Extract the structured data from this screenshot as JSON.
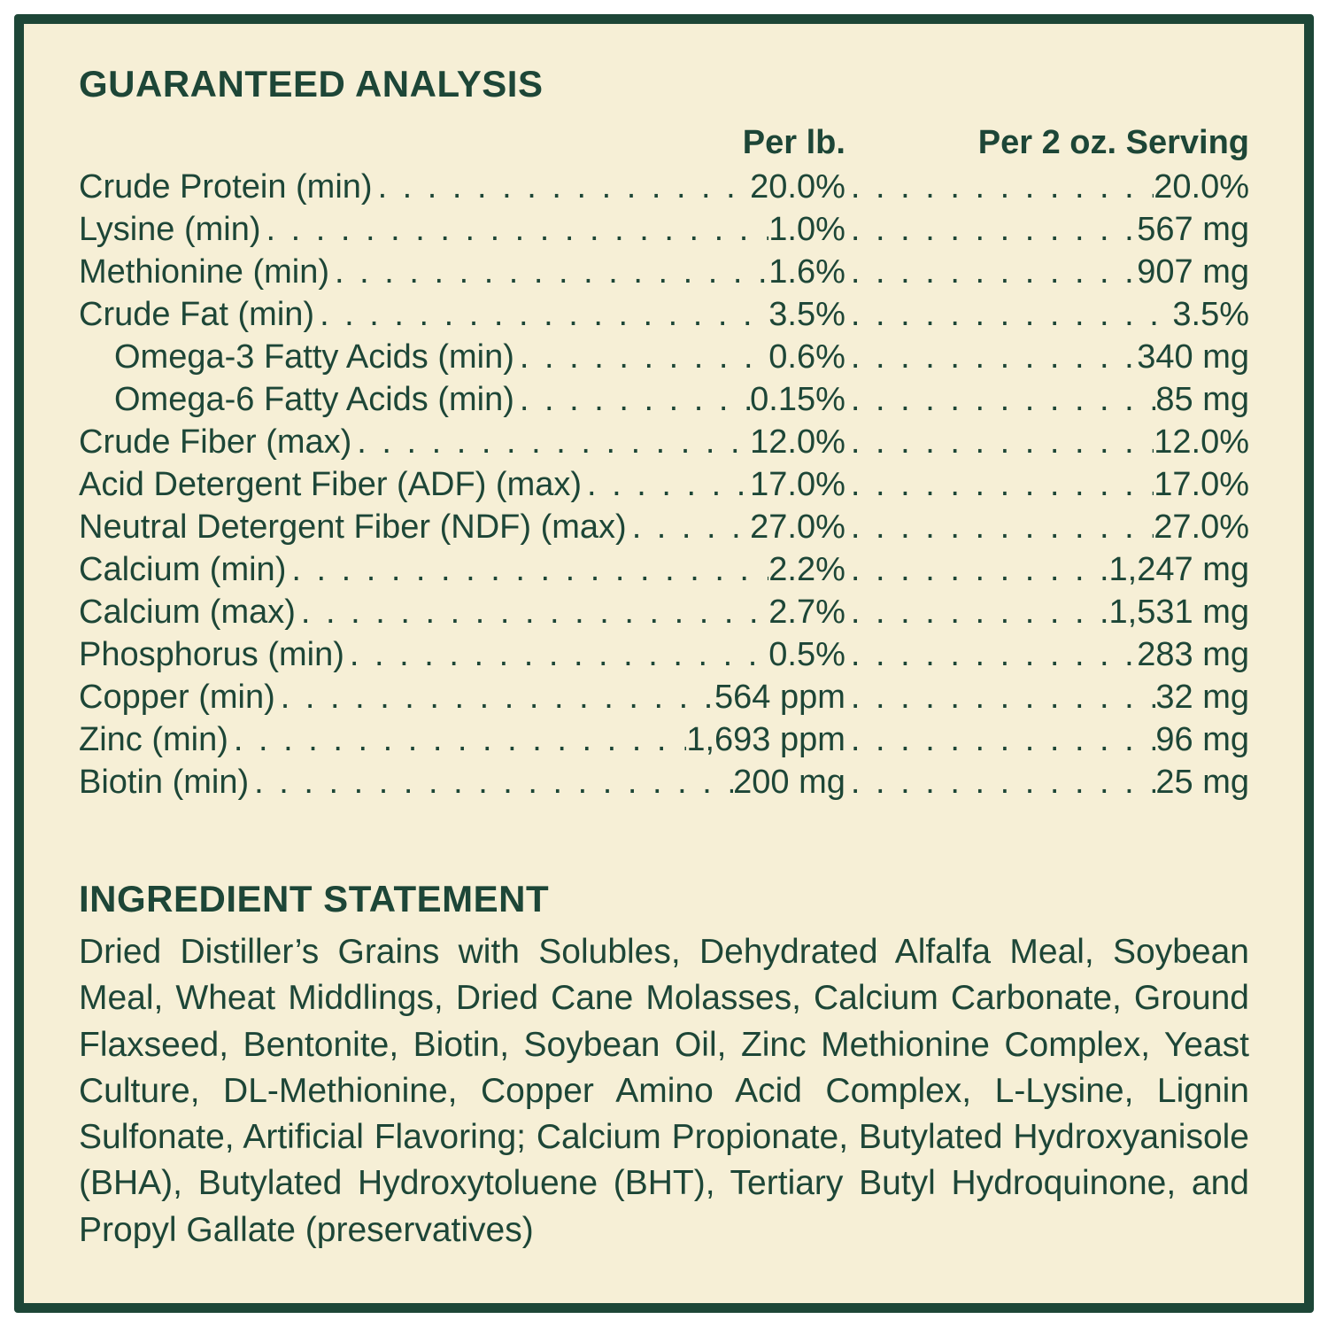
{
  "page": {
    "colors": {
      "background": "#f6efd6",
      "border": "#1d4637",
      "text": "#1d4637"
    }
  },
  "guaranteed_analysis": {
    "title": "GUARANTEED ANALYSIS",
    "col1_header": "Per lb.",
    "col2_header": "Per 2 oz. Serving",
    "rows": [
      {
        "label": "Crude Protein (min)",
        "per_lb": "20.0%",
        "per_serving": "20.0%"
      },
      {
        "label": "Lysine (min)",
        "per_lb": "1.0%",
        "per_serving": "567 mg"
      },
      {
        "label": "Methionine (min)",
        "per_lb": "1.6%",
        "per_serving": "907 mg"
      },
      {
        "label": "Crude Fat (min)",
        "per_lb": "3.5%",
        "per_serving": "3.5%"
      },
      {
        "label": "Omega-3 Fatty Acids (min)",
        "per_lb": "0.6%",
        "per_serving": "340 mg"
      },
      {
        "label": "Omega-6 Fatty Acids (min)",
        "per_lb": "0.15%",
        "per_serving": "85 mg"
      },
      {
        "label": "Crude Fiber (max)",
        "per_lb": "12.0%",
        "per_serving": "12.0%"
      },
      {
        "label": "Acid Detergent Fiber (ADF) (max)",
        "per_lb": "17.0%",
        "per_serving": "17.0%"
      },
      {
        "label": "Neutral Detergent Fiber (NDF) (max)",
        "per_lb": "27.0%",
        "per_serving": "27.0%"
      },
      {
        "label": "Calcium (min)",
        "per_lb": "2.2%",
        "per_serving": "1,247 mg"
      },
      {
        "label": "Calcium (max)",
        "per_lb": "2.7%",
        "per_serving": "1,531 mg"
      },
      {
        "label": "Phosphorus (min)",
        "per_lb": "0.5%",
        "per_serving": "283 mg"
      },
      {
        "label": "Copper (min)",
        "per_lb": "564 ppm",
        "per_serving": "32 mg"
      },
      {
        "label": "Zinc (min)",
        "per_lb": "1,693 ppm",
        "per_serving": "96 mg"
      },
      {
        "label": "Biotin (min)",
        "per_lb": "200 mg",
        "per_serving": "25 mg"
      }
    ]
  },
  "ingredient_statement": {
    "title": "INGREDIENT STATEMENT",
    "text": "Dried Distiller’s Grains with Solubles, Dehydrated Alfalfa Meal, Soybean Meal, Wheat Middlings, Dried Cane Molasses, Calcium Carbonate, Ground Flaxseed, Bentonite, Biotin, Soybean Oil, Zinc Methionine Complex, Yeast Culture, DL-Methionine, Copper Amino Acid Complex, L-Lysine, Lignin Sulfonate, Artificial Flavoring; Calcium Propionate, Butylated Hydroxyanisole (BHA), Butylated Hydroxytoluene (BHT), Tertiary Butyl Hydroquinone, and Propyl Gallate (preservatives)"
  }
}
